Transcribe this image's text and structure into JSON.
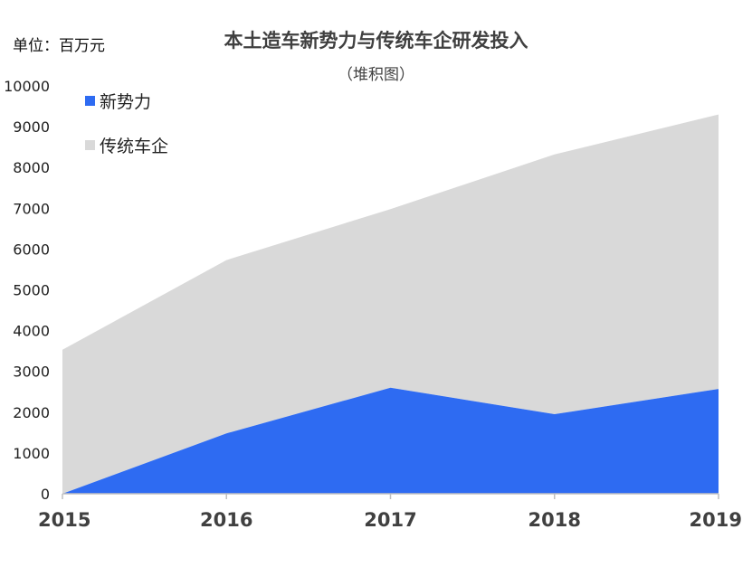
{
  "header": {
    "unit_label": "单位：百万元",
    "title": "本土造车新势力与传统车企研发投入",
    "subtitle": "（堆积图）"
  },
  "colors": {
    "new_forces": "#2E6BF2",
    "traditional": "#D9D9D9",
    "axis": "#BFBFBF"
  },
  "chart_data": {
    "type": "area",
    "stacked": true,
    "title": "本土造车新势力与传统车企研发投入",
    "subtitle": "（堆积图）",
    "unit": "单位：百万元",
    "categories": [
      "2015",
      "2016",
      "2017",
      "2018",
      "2019"
    ],
    "series": [
      {
        "name": "新势力",
        "values": [
          0,
          1480,
          2600,
          1950,
          2570
        ]
      },
      {
        "name": "传统车企",
        "values": [
          3530,
          4250,
          4380,
          6370,
          6730
        ]
      }
    ],
    "ylim": [
      0,
      10000
    ],
    "yticks": [
      0,
      1000,
      2000,
      3000,
      4000,
      5000,
      6000,
      7000,
      8000,
      9000,
      10000
    ],
    "grid": false,
    "legend_position": "top-left"
  }
}
